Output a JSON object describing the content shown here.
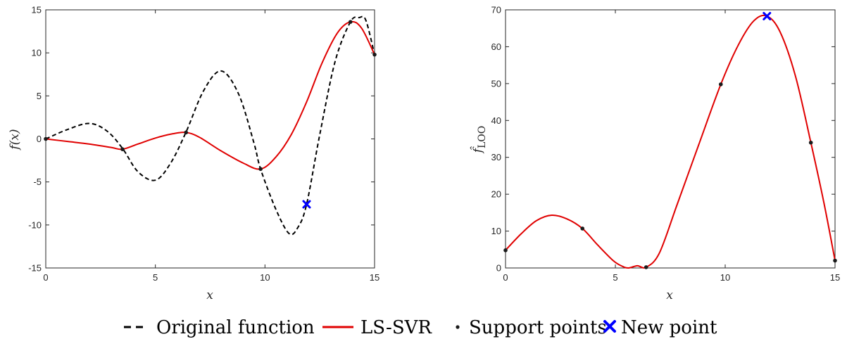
{
  "colors": {
    "original": "#000000",
    "lssvr": "#e00000",
    "support": "#1a1a1a",
    "newpoint": "#0000ff",
    "axis": "#262626"
  },
  "legend": {
    "original": "Original function",
    "lssvr": "LS-SVR",
    "support": "Support points",
    "newpoint": "New point"
  },
  "chart_data": [
    {
      "type": "line",
      "xlabel": "x",
      "ylabel": "f(x)",
      "xlim": [
        0,
        15
      ],
      "ylim": [
        -15,
        15
      ],
      "xticks": [
        "0",
        "5",
        "10",
        "15"
      ],
      "yticks": [
        "-15",
        "-10",
        "-5",
        "0",
        "5",
        "10",
        "15"
      ],
      "series": [
        {
          "name": "Original function",
          "style": "dashed",
          "x": [
            0,
            1,
            2,
            2.8,
            3.5,
            4.2,
            5,
            5.7,
            6.4,
            7.2,
            8,
            8.8,
            9.5,
            9.8,
            10.5,
            11.1,
            11.5,
            11.9,
            12.5,
            13.2,
            13.9,
            14.3,
            14.6,
            15
          ],
          "y": [
            0,
            1.1,
            1.8,
            0.9,
            -1.1,
            -3.8,
            -4.8,
            -2.8,
            0.8,
            5.6,
            7.9,
            5.2,
            -0.5,
            -3.5,
            -8.2,
            -11.0,
            -10.3,
            -7.6,
            0.5,
            9.0,
            13.6,
            14.1,
            13.8,
            9.8
          ]
        },
        {
          "name": "LS-SVR",
          "style": "solid",
          "x": [
            0,
            1,
            2,
            3,
            3.5,
            4.2,
            5,
            5.8,
            6.4,
            7,
            8,
            9,
            9.8,
            10.5,
            11.2,
            11.9,
            12.6,
            13.3,
            13.9,
            14.4,
            15
          ],
          "y": [
            0,
            -0.3,
            -0.6,
            -1.0,
            -1.2,
            -0.6,
            0.1,
            0.6,
            0.75,
            0.2,
            -1.4,
            -2.8,
            -3.5,
            -2.1,
            0.5,
            4.3,
            8.8,
            12.3,
            13.6,
            12.9,
            9.8
          ]
        }
      ],
      "support_points": {
        "x": [
          0,
          3.5,
          6.4,
          9.8,
          13.9,
          15
        ],
        "y": [
          0,
          -1.2,
          0.75,
          -3.5,
          13.6,
          9.8
        ]
      },
      "new_point": {
        "x": 11.9,
        "y": -7.6
      }
    },
    {
      "type": "line",
      "xlabel": "x",
      "ylabel": "f̂LOO",
      "xlim": [
        0,
        15
      ],
      "ylim": [
        0,
        70
      ],
      "xticks": [
        "0",
        "5",
        "10",
        "15"
      ],
      "yticks": [
        "0",
        "10",
        "20",
        "30",
        "40",
        "50",
        "60",
        "70"
      ],
      "series": [
        {
          "name": "LS-SVR",
          "style": "solid",
          "x": [
            0,
            0.7,
            1.4,
            2.1,
            2.8,
            3.5,
            4.2,
            4.9,
            5.3,
            5.6,
            6.0,
            6.4,
            7.0,
            7.8,
            8.8,
            9.8,
            10.6,
            11.3,
            11.9,
            12.5,
            13.2,
            13.9,
            14.5,
            15
          ],
          "y": [
            4.8,
            9.2,
            12.8,
            14.3,
            13.3,
            10.7,
            6.2,
            2.0,
            0.5,
            0.0,
            0.6,
            0.2,
            4.0,
            17.0,
            33.5,
            49.8,
            60.5,
            67.0,
            68.3,
            64.0,
            52.0,
            34.0,
            17.5,
            2.0
          ]
        }
      ],
      "support_points": {
        "x": [
          0,
          3.5,
          6.4,
          9.8,
          13.9,
          15
        ],
        "y": [
          4.8,
          10.7,
          0.2,
          49.8,
          34.0,
          2.0
        ]
      },
      "new_point": {
        "x": 11.9,
        "y": 68.3
      }
    }
  ]
}
